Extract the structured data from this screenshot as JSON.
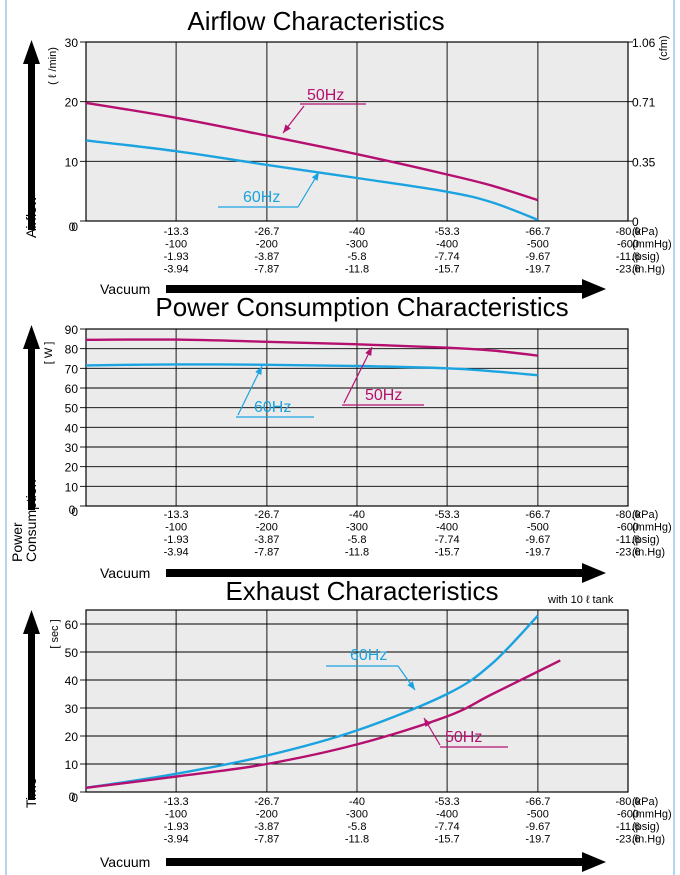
{
  "colors": {
    "c50": "#b5106f",
    "c60": "#1ba3e0",
    "plot_bg": "#ebebeb",
    "ink": "#000000"
  },
  "chart_data": [
    {
      "type": "line",
      "title": "Airflow Characteristics",
      "ylabel": "Airflow",
      "yunit": "( ℓ /min)",
      "yunit_right": "(cfm)",
      "ylim": [
        0,
        30
      ],
      "yticks": [
        0,
        10,
        20,
        30
      ],
      "yticks_right": [
        {
          "v": 0,
          "label": "0"
        },
        {
          "v": 10,
          "label": "0.35"
        },
        {
          "v": 20,
          "label": "0.71"
        },
        {
          "v": 30,
          "label": "1.06"
        }
      ],
      "xlim": [
        0,
        -80
      ],
      "xlabel": "Vacuum",
      "grid": true,
      "series": [
        {
          "name": "50Hz",
          "color": "#b5106f",
          "x": [
            0,
            -13.3,
            -26.7,
            -40,
            -53.3,
            -60,
            -66.7
          ],
          "y": [
            19.8,
            17.3,
            14.3,
            11.2,
            7.8,
            5.9,
            3.5
          ]
        },
        {
          "name": "60Hz",
          "color": "#1ba3e0",
          "x": [
            0,
            -13.3,
            -26.7,
            -40,
            -53.3,
            -60,
            -66.7
          ],
          "y": [
            13.5,
            11.7,
            9.4,
            7.2,
            4.9,
            3.1,
            0.2
          ]
        }
      ]
    },
    {
      "type": "line",
      "title": "Power Consumption Characteristics",
      "ylabel": "Power Consumption",
      "yunit": "[ W ]",
      "ylim": [
        0,
        90
      ],
      "yticks": [
        0,
        10,
        20,
        30,
        40,
        50,
        60,
        70,
        80,
        90
      ],
      "xlim": [
        0,
        -80
      ],
      "xlabel": "Vacuum",
      "grid": true,
      "series": [
        {
          "name": "50Hz",
          "color": "#b5106f",
          "x": [
            0,
            -13.3,
            -26.7,
            -40,
            -53.3,
            -60,
            -66.7
          ],
          "y": [
            84.5,
            84.6,
            83.5,
            82.2,
            80.5,
            79,
            76.5
          ]
        },
        {
          "name": "60Hz",
          "color": "#1ba3e0",
          "x": [
            0,
            -13.3,
            -26.7,
            -40,
            -53.3,
            -60,
            -66.7
          ],
          "y": [
            71.5,
            72,
            71.8,
            71.2,
            70,
            68.5,
            66.5
          ]
        }
      ]
    },
    {
      "type": "line",
      "title": "Exhaust Characteristics",
      "note": "with 10 ℓ  tank",
      "ylabel": "Time",
      "yunit": "[ sec ]",
      "ylim": [
        0,
        65
      ],
      "yticks": [
        0,
        10,
        20,
        30,
        40,
        50,
        60
      ],
      "xlim": [
        0,
        -80
      ],
      "xlabel": "Vacuum",
      "grid": true,
      "series": [
        {
          "name": "60Hz",
          "color": "#1ba3e0",
          "x": [
            0,
            -13.3,
            -26.7,
            -40,
            -53.3,
            -60,
            -66.7
          ],
          "y": [
            1.5,
            6.5,
            13,
            22,
            35,
            46,
            63
          ]
        },
        {
          "name": "50Hz",
          "color": "#b5106f",
          "x": [
            0,
            -13.3,
            -26.7,
            -40,
            -53.3,
            -60,
            -70
          ],
          "y": [
            1.5,
            5.5,
            10,
            17,
            27,
            35,
            47
          ]
        }
      ]
    }
  ],
  "axis_table": {
    "ticks": [
      {
        "kpa": "-13.3",
        "mmhg": "-100",
        "psig": "-1.93",
        "inhg": "-3.94"
      },
      {
        "kpa": "-26.7",
        "mmhg": "-200",
        "psig": "-3.87",
        "inhg": "-7.87"
      },
      {
        "kpa": "-40",
        "mmhg": "-300",
        "psig": "-5.8",
        "inhg": "-11.8"
      },
      {
        "kpa": "-53.3",
        "mmhg": "-400",
        "psig": "-7.74",
        "inhg": "-15.7"
      },
      {
        "kpa": "-66.7",
        "mmhg": "-500",
        "psig": "-9.67",
        "inhg": "-19.7"
      },
      {
        "kpa": "-80.0",
        "mmhg": "-600",
        "psig": "-11.6",
        "inhg": "-23.6"
      }
    ],
    "units": [
      "(kPa)",
      "(mmHg)",
      "(psig)",
      "(in.Hg)"
    ],
    "zero_label": "0"
  }
}
